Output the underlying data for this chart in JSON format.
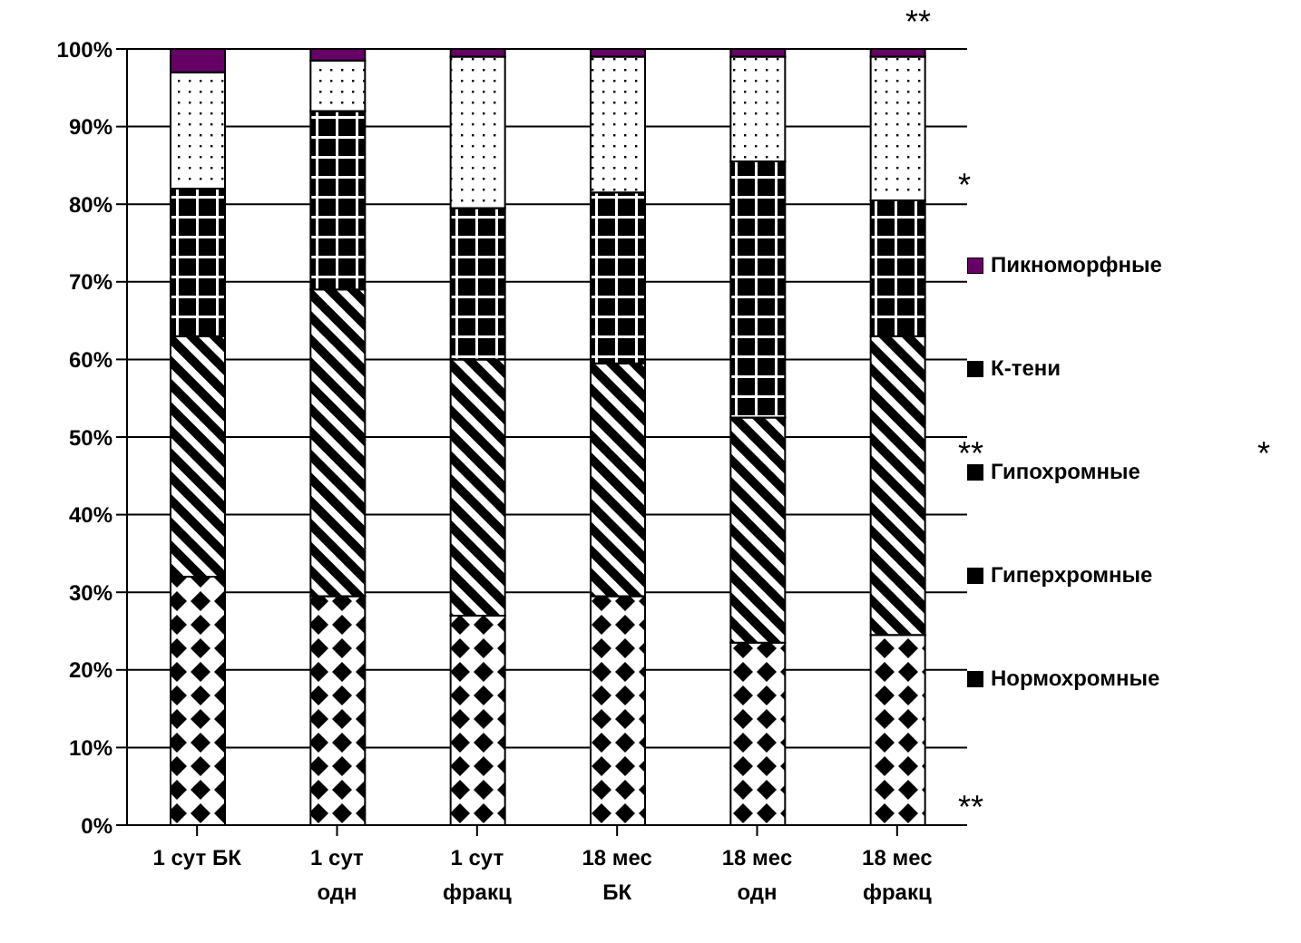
{
  "chart_data": {
    "type": "bar",
    "stacked": true,
    "categories": [
      "1 сут БК",
      "1 сут\nодн",
      "1 сут\nфракц",
      "18 мес\nБК",
      "18 мес\nодн",
      "18 мес\nфракц"
    ],
    "series": [
      {
        "name": "Нормохромные",
        "color": "#000000",
        "values": [
          32,
          29.5,
          27,
          29.5,
          23.5,
          24.5
        ]
      },
      {
        "name": "Гиперхромные",
        "color": "#000000",
        "values": [
          31,
          39.5,
          33,
          30,
          29,
          38.5
        ]
      },
      {
        "name": "Гипохромные",
        "color": "#000000",
        "values": [
          19,
          23,
          19.5,
          22,
          33,
          17.5
        ]
      },
      {
        "name": "К-тени",
        "color": "#000000",
        "values": [
          15,
          6.5,
          19.5,
          17.5,
          13.5,
          18.5
        ]
      },
      {
        "name": "Пикноморфные",
        "color": "#660066",
        "values": [
          3,
          1.5,
          1,
          1,
          1,
          1
        ]
      }
    ],
    "ylim": [
      0,
      100
    ],
    "yticks": [
      {
        "value": 0,
        "label": "0%"
      },
      {
        "value": 10,
        "label": "10%"
      },
      {
        "value": 20,
        "label": "20%"
      },
      {
        "value": 30,
        "label": "30%"
      },
      {
        "value": 40,
        "label": "40%"
      },
      {
        "value": 50,
        "label": "50%"
      },
      {
        "value": 60,
        "label": "60%"
      },
      {
        "value": 70,
        "label": "70%"
      },
      {
        "value": 80,
        "label": "80%"
      },
      {
        "value": 90,
        "label": "90%"
      },
      {
        "value": 100,
        "label": "100%"
      }
    ],
    "grid": "y",
    "legend": "right",
    "annotations": [
      "**",
      "*",
      "**",
      "*",
      "**"
    ]
  }
}
